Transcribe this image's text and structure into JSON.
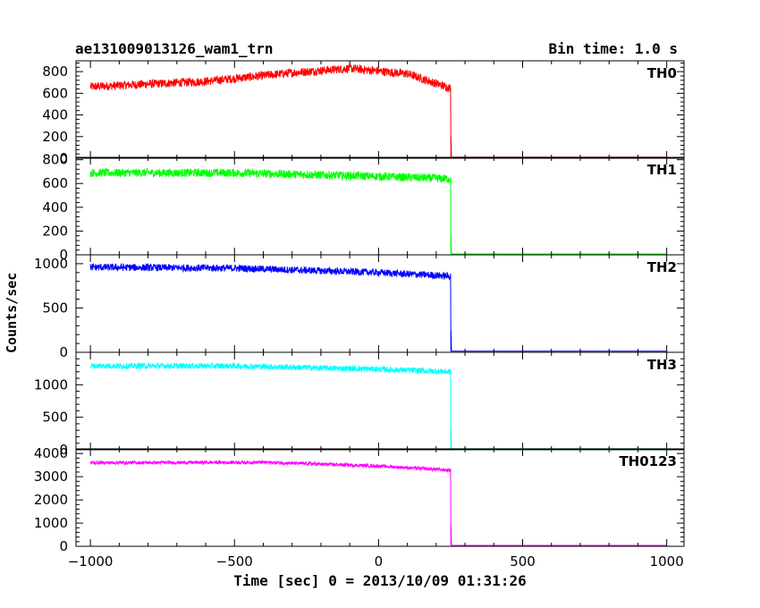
{
  "header": {
    "title": "ae131009013126_wam1_trn",
    "bin_time": "Bin time: 1.0 s"
  },
  "chart_data": {
    "type": "line",
    "xlabel": "Time [sec] 0 = 2013/10/09 01:31:26",
    "ylabel": "Counts/sec",
    "xlim": [
      -1050,
      1060
    ],
    "xticks": [
      -1000,
      -500,
      0,
      500,
      1000
    ],
    "step_time": 250,
    "panels": [
      {
        "name": "TH0",
        "color": "#ff0000",
        "ylim": [
          0,
          900
        ],
        "yticks": [
          0,
          200,
          400,
          600,
          800
        ],
        "profile": [
          [
            -1000,
            660
          ],
          [
            -600,
            710
          ],
          [
            -300,
            790
          ],
          [
            -100,
            830
          ],
          [
            100,
            780
          ],
          [
            245,
            650
          ]
        ],
        "noise": 40,
        "after": 10
      },
      {
        "name": "TH1",
        "color": "#00ff00",
        "ylim": [
          0,
          820
        ],
        "yticks": [
          0,
          200,
          400,
          600,
          800
        ],
        "profile": [
          [
            -1000,
            690
          ],
          [
            -500,
            690
          ],
          [
            0,
            660
          ],
          [
            245,
            640
          ]
        ],
        "noise": 35,
        "after": 8
      },
      {
        "name": "TH2",
        "color": "#0000ff",
        "ylim": [
          0,
          1100
        ],
        "yticks": [
          0,
          500,
          1000
        ],
        "profile": [
          [
            -1000,
            960
          ],
          [
            -500,
            950
          ],
          [
            0,
            900
          ],
          [
            245,
            860
          ]
        ],
        "noise": 40,
        "after": 12
      },
      {
        "name": "TH3",
        "color": "#00ffff",
        "ylim": [
          0,
          1500
        ],
        "yticks": [
          0,
          500,
          1000
        ],
        "profile": [
          [
            -1000,
            1290
          ],
          [
            -500,
            1290
          ],
          [
            0,
            1240
          ],
          [
            245,
            1200
          ]
        ],
        "noise": 45,
        "after": 15
      },
      {
        "name": "TH0123",
        "color": "#ff00ff",
        "ylim": [
          0,
          4200
        ],
        "yticks": [
          0,
          1000,
          2000,
          3000,
          4000
        ],
        "profile": [
          [
            -1000,
            3600
          ],
          [
            -400,
            3620
          ],
          [
            0,
            3460
          ],
          [
            245,
            3280
          ]
        ],
        "noise": 70,
        "after": 40
      }
    ]
  }
}
